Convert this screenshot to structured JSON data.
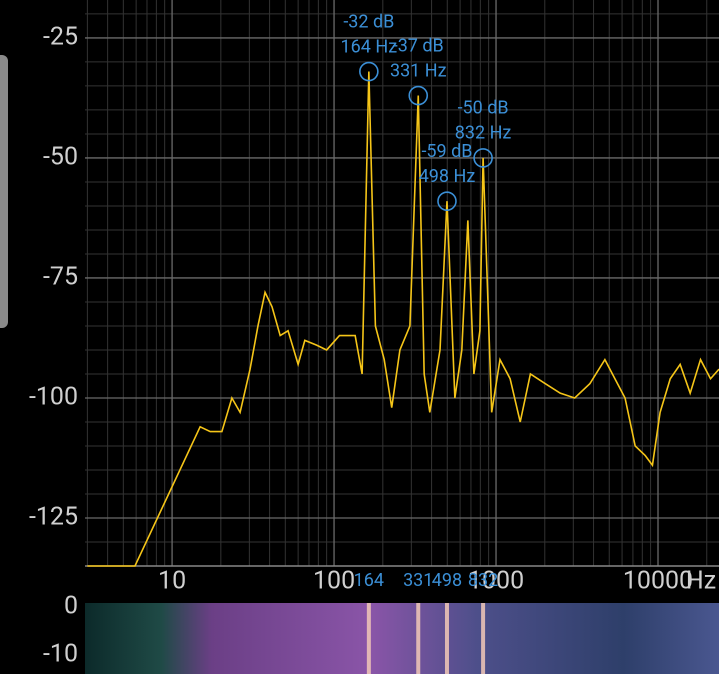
{
  "chart_data": {
    "type": "line",
    "x_label": "Hz",
    "color": "#f5c518",
    "log_x": true,
    "grid": true,
    "xlim": [
      2.9,
      23800
    ],
    "ylim": [
      -135,
      -17.1
    ],
    "xticks": [
      10,
      100,
      1000,
      10000
    ],
    "yticks": [
      -25,
      -50,
      -75,
      -100,
      -125
    ],
    "xgrid_minor": [
      3,
      4,
      5,
      6,
      7,
      8,
      9,
      20,
      30,
      40,
      50,
      60,
      70,
      80,
      90,
      200,
      300,
      400,
      500,
      600,
      700,
      800,
      900,
      2000,
      3000,
      4000,
      5000,
      6000,
      7000,
      8000,
      9000,
      20000
    ],
    "ygrid_minor": [
      -20,
      -30,
      -35,
      -40,
      -45,
      -55,
      -60,
      -65,
      -70,
      -80,
      -85,
      -90,
      -95,
      -105,
      -110,
      -115,
      -120,
      -130
    ],
    "x": [
      3,
      5.9,
      14.9,
      17.2,
      20.3,
      23.4,
      26.3,
      30.3,
      33.9,
      37.5,
      41.4,
      46.5,
      52,
      60,
      66,
      78,
      90,
      108,
      135,
      149,
      164,
      180,
      204,
      227,
      255,
      294,
      331,
      360,
      390,
      451,
      498,
      557,
      615,
      670,
      730,
      795,
      832,
      940,
      1058,
      1222,
      1410,
      1630,
      2010,
      2490,
      3060,
      3800,
      4700,
      5420,
      6260,
      7230,
      8340,
      9240,
      10300,
      11900,
      13700,
      15800,
      18300,
      21100,
      23800
    ],
    "values": [
      -135,
      -135,
      -106,
      -107,
      -107,
      -100,
      -103,
      -94,
      -85,
      -78,
      -81,
      -87,
      -86,
      -93,
      -88,
      -89,
      -90,
      -87,
      -87,
      -95,
      -32,
      -85,
      -92,
      -102,
      -90,
      -85,
      -37,
      -95,
      -103,
      -90,
      -59,
      -100,
      -90,
      -63,
      -95,
      -86,
      -50,
      -103,
      -92,
      -96,
      -105,
      -95,
      -97,
      -99,
      -100,
      -97,
      -92,
      -96,
      -100,
      -110,
      -112,
      -114,
      -103,
      -96,
      -93,
      -99,
      -92,
      -96,
      -94
    ],
    "peaks": [
      {
        "x": 164,
        "y": -32,
        "labels": [
          "-32 dB",
          "164 Hz"
        ]
      },
      {
        "x": 331,
        "y": -37,
        "labels": [
          "-37 dB",
          "331 Hz"
        ]
      },
      {
        "x": 498,
        "y": -59,
        "labels": [
          "-59 dB",
          "498 Hz"
        ]
      },
      {
        "x": 832,
        "y": -50,
        "labels": [
          "-50 dB",
          "832 Hz"
        ]
      }
    ],
    "peak_ticks": [
      164,
      331,
      498,
      832
    ],
    "spectrogram": {
      "yticks": [
        0,
        -10
      ]
    }
  }
}
